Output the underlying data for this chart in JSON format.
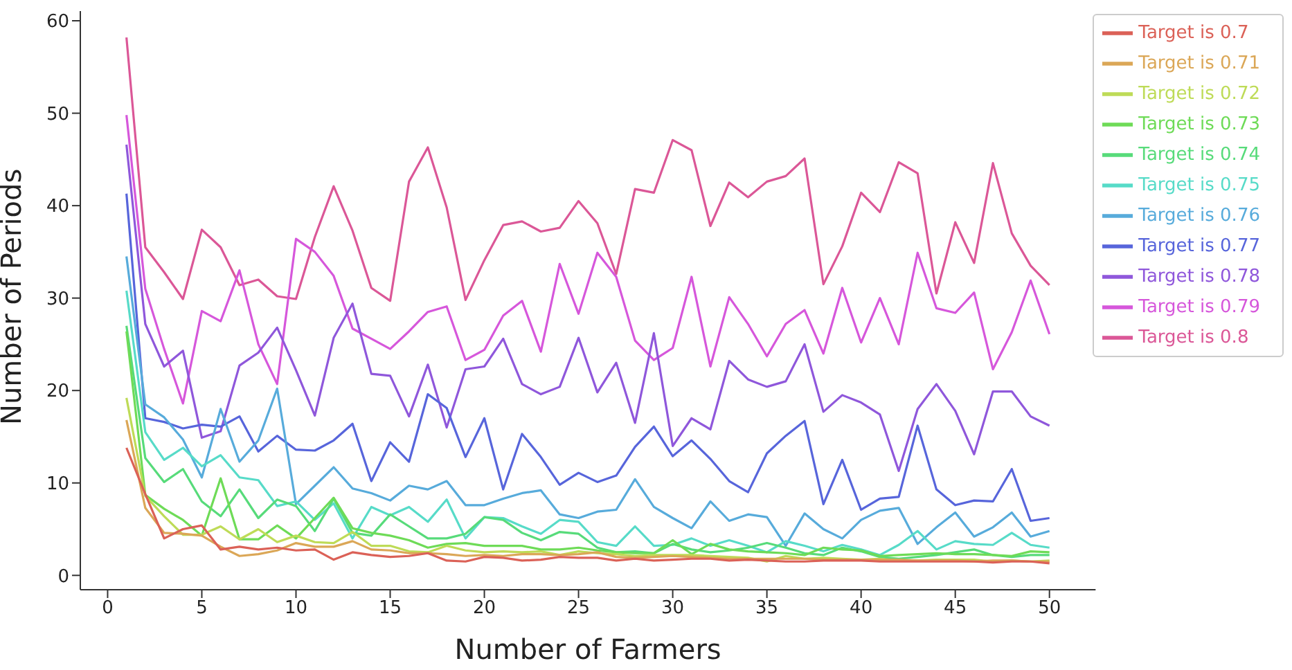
{
  "chart_data": {
    "type": "line",
    "xlabel": "Number of Farmers",
    "ylabel": "Number of Periods",
    "x": [
      1,
      2,
      3,
      4,
      5,
      6,
      7,
      8,
      9,
      10,
      11,
      12,
      13,
      14,
      15,
      16,
      17,
      18,
      19,
      20,
      21,
      22,
      23,
      24,
      25,
      26,
      27,
      28,
      29,
      30,
      31,
      32,
      33,
      34,
      35,
      36,
      37,
      38,
      39,
      40,
      41,
      42,
      43,
      44,
      45,
      46,
      47,
      48,
      49,
      50
    ],
    "series": [
      {
        "name": "Target is 0.8",
        "color": "#db5797",
        "values": [
          58.2,
          35.5,
          32.8,
          29.9,
          37.4,
          35.5,
          31.4,
          32.0,
          30.2,
          29.9,
          36.6,
          42.1,
          37.3,
          31.1,
          29.7,
          42.6,
          46.3,
          39.8,
          29.8,
          34.1,
          37.9,
          38.3,
          37.2,
          37.6,
          40.5,
          38.1,
          32.6,
          41.8,
          41.4,
          47.1,
          46.0,
          37.8,
          42.5,
          40.9,
          42.6,
          43.2,
          45.1,
          31.5,
          35.6,
          41.4,
          39.3,
          44.7,
          43.5,
          30.5,
          38.2,
          33.8,
          44.6,
          37.0,
          33.5,
          31.4
        ]
      },
      {
        "name": "Target is 0.79",
        "color": "#d657db",
        "values": [
          49.8,
          31.0,
          24.5,
          18.6,
          28.6,
          27.5,
          33.0,
          25.0,
          20.7,
          36.4,
          35.0,
          32.4,
          26.7,
          25.6,
          24.5,
          26.4,
          28.5,
          29.1,
          23.3,
          24.4,
          28.1,
          29.7,
          24.2,
          33.7,
          28.3,
          34.9,
          32.3,
          25.4,
          23.3,
          24.6,
          32.3,
          22.6,
          30.1,
          27.2,
          23.7,
          27.2,
          28.7,
          24.0,
          31.1,
          25.2,
          30.0,
          25.0,
          34.9,
          28.9,
          28.4,
          30.6,
          22.3,
          26.3,
          31.9,
          26.1
        ]
      },
      {
        "name": "Target is 0.78",
        "color": "#8f57db",
        "values": [
          46.6,
          27.2,
          22.6,
          24.3,
          14.9,
          15.6,
          22.7,
          24.1,
          26.8,
          22.2,
          17.3,
          25.7,
          29.4,
          21.8,
          21.6,
          17.2,
          22.8,
          16.0,
          22.3,
          22.6,
          25.6,
          20.7,
          19.6,
          20.4,
          25.7,
          19.8,
          23.0,
          16.5,
          26.2,
          14.0,
          17.0,
          15.8,
          23.2,
          21.2,
          20.4,
          21.0,
          25.0,
          17.7,
          19.5,
          18.7,
          17.4,
          11.3,
          18.0,
          20.7,
          17.8,
          13.1,
          19.9,
          19.9,
          17.2,
          16.2
        ]
      },
      {
        "name": "Target is 0.77",
        "color": "#5765db",
        "values": [
          41.3,
          17.0,
          16.6,
          15.9,
          16.3,
          16.1,
          17.2,
          13.4,
          15.1,
          13.6,
          13.5,
          14.6,
          16.4,
          10.2,
          14.4,
          12.3,
          19.6,
          18.1,
          12.8,
          17.0,
          9.3,
          15.3,
          12.8,
          9.8,
          11.1,
          10.1,
          10.8,
          13.9,
          16.1,
          12.9,
          14.6,
          12.6,
          10.2,
          9.0,
          13.2,
          15.1,
          16.7,
          7.7,
          12.5,
          7.1,
          8.3,
          8.5,
          16.2,
          9.3,
          7.6,
          8.1,
          8.0,
          11.5,
          5.9,
          6.2
        ]
      },
      {
        "name": "Target is 0.76",
        "color": "#57abdb",
        "values": [
          34.5,
          18.5,
          17.1,
          14.7,
          10.6,
          18.0,
          12.3,
          14.6,
          20.2,
          7.7,
          9.7,
          11.7,
          9.4,
          8.9,
          8.1,
          9.7,
          9.3,
          10.2,
          7.6,
          7.6,
          8.3,
          8.9,
          9.2,
          6.6,
          6.2,
          6.9,
          7.1,
          10.4,
          7.4,
          6.2,
          5.1,
          8.0,
          5.9,
          6.6,
          6.3,
          3.2,
          6.7,
          5.0,
          4.0,
          6.0,
          7.0,
          7.3,
          3.4,
          5.2,
          6.8,
          4.2,
          5.2,
          6.8,
          4.2,
          4.8
        ]
      },
      {
        "name": "Target is 0.75",
        "color": "#57dbc8",
        "values": [
          30.8,
          15.5,
          12.5,
          13.8,
          11.8,
          13.0,
          10.6,
          10.3,
          7.5,
          8.0,
          6.0,
          7.8,
          4.0,
          7.4,
          6.5,
          7.4,
          5.8,
          8.2,
          4.0,
          6.3,
          6.2,
          5.3,
          4.5,
          6.0,
          5.8,
          3.6,
          3.2,
          5.3,
          3.2,
          3.3,
          4.0,
          3.2,
          3.8,
          3.2,
          2.5,
          3.7,
          3.2,
          2.6,
          3.3,
          2.8,
          2.2,
          3.3,
          4.8,
          2.8,
          3.7,
          3.4,
          3.3,
          4.6,
          3.3,
          3.0
        ]
      },
      {
        "name": "Target is 0.74",
        "color": "#57db7a",
        "values": [
          27.0,
          12.7,
          10.1,
          11.5,
          8.0,
          6.4,
          9.3,
          6.2,
          8.2,
          7.5,
          4.8,
          8.3,
          4.6,
          4.3,
          6.6,
          5.3,
          4.0,
          4.0,
          4.5,
          6.3,
          6.0,
          4.6,
          3.8,
          4.7,
          4.5,
          3.0,
          2.5,
          2.6,
          2.4,
          3.4,
          2.8,
          2.5,
          2.7,
          3.0,
          3.5,
          3.0,
          2.4,
          2.2,
          3.0,
          2.6,
          2.0,
          1.8,
          2.0,
          2.2,
          2.5,
          2.8,
          2.2,
          2.0,
          2.2,
          2.2
        ]
      },
      {
        "name": "Target is 0.73",
        "color": "#6edb57",
        "values": [
          26.4,
          8.7,
          7.2,
          6.0,
          4.3,
          10.5,
          3.9,
          3.9,
          5.4,
          4.0,
          6.2,
          8.4,
          5.1,
          4.6,
          4.3,
          3.8,
          3.0,
          3.4,
          3.5,
          3.2,
          3.2,
          3.2,
          2.8,
          2.8,
          3.0,
          2.7,
          2.5,
          2.4,
          2.4,
          3.8,
          2.3,
          3.4,
          2.8,
          2.6,
          2.5,
          2.4,
          2.2,
          3.0,
          2.8,
          2.7,
          2.1,
          2.2,
          2.3,
          2.4,
          2.3,
          2.3,
          2.2,
          2.1,
          2.6,
          2.5
        ]
      },
      {
        "name": "Target is 0.72",
        "color": "#bedb57",
        "values": [
          19.2,
          8.6,
          6.4,
          4.4,
          4.4,
          5.3,
          3.9,
          5.0,
          3.6,
          4.3,
          3.6,
          3.5,
          4.7,
          3.2,
          3.2,
          2.6,
          2.5,
          3.2,
          2.7,
          2.5,
          2.6,
          2.5,
          2.6,
          2.2,
          2.6,
          2.4,
          2.3,
          2.1,
          2.2,
          2.2,
          2.2,
          2.1,
          2.0,
          1.9,
          1.5,
          2.1,
          1.8,
          1.9,
          1.8,
          1.7,
          1.8,
          1.6,
          1.6,
          1.7,
          1.7,
          1.7,
          1.5,
          1.6,
          1.5,
          1.6
        ]
      },
      {
        "name": "Target is 0.71",
        "color": "#dba757",
        "values": [
          16.8,
          7.3,
          4.6,
          4.5,
          4.3,
          3.1,
          2.1,
          2.3,
          2.7,
          3.5,
          3.1,
          3.1,
          3.7,
          2.8,
          2.7,
          2.4,
          2.4,
          2.3,
          2.1,
          2.2,
          2.1,
          2.3,
          2.3,
          2.2,
          2.3,
          2.5,
          2.0,
          1.9,
          2.0,
          2.1,
          2.0,
          1.9,
          1.8,
          1.8,
          1.8,
          1.8,
          1.8,
          1.7,
          1.7,
          1.7,
          1.7,
          1.7,
          1.6,
          1.6,
          1.6,
          1.5,
          1.6,
          1.6,
          1.5,
          1.5
        ]
      },
      {
        "name": "Target is 0.7",
        "color": "#db6157",
        "values": [
          13.8,
          8.8,
          4.0,
          5.0,
          5.4,
          2.8,
          3.1,
          2.8,
          3.0,
          2.7,
          2.8,
          1.7,
          2.5,
          2.2,
          2.0,
          2.1,
          2.4,
          1.6,
          1.5,
          2.0,
          1.9,
          1.6,
          1.7,
          2.0,
          1.9,
          1.9,
          1.6,
          1.8,
          1.6,
          1.7,
          1.8,
          1.8,
          1.6,
          1.7,
          1.6,
          1.5,
          1.5,
          1.6,
          1.6,
          1.6,
          1.5,
          1.5,
          1.5,
          1.5,
          1.5,
          1.5,
          1.4,
          1.5,
          1.5,
          1.3
        ]
      }
    ],
    "xlim": [
      -1.45,
      52.45
    ],
    "xticks": [
      0,
      5,
      10,
      15,
      20,
      25,
      30,
      35,
      40,
      45,
      50
    ],
    "ylim": [
      -1.55,
      61.05
    ],
    "yticks": [
      0,
      10,
      20,
      30,
      40,
      50,
      60
    ],
    "legend": "top right",
    "grid": false,
    "marker": "none",
    "line_style": "solid"
  }
}
